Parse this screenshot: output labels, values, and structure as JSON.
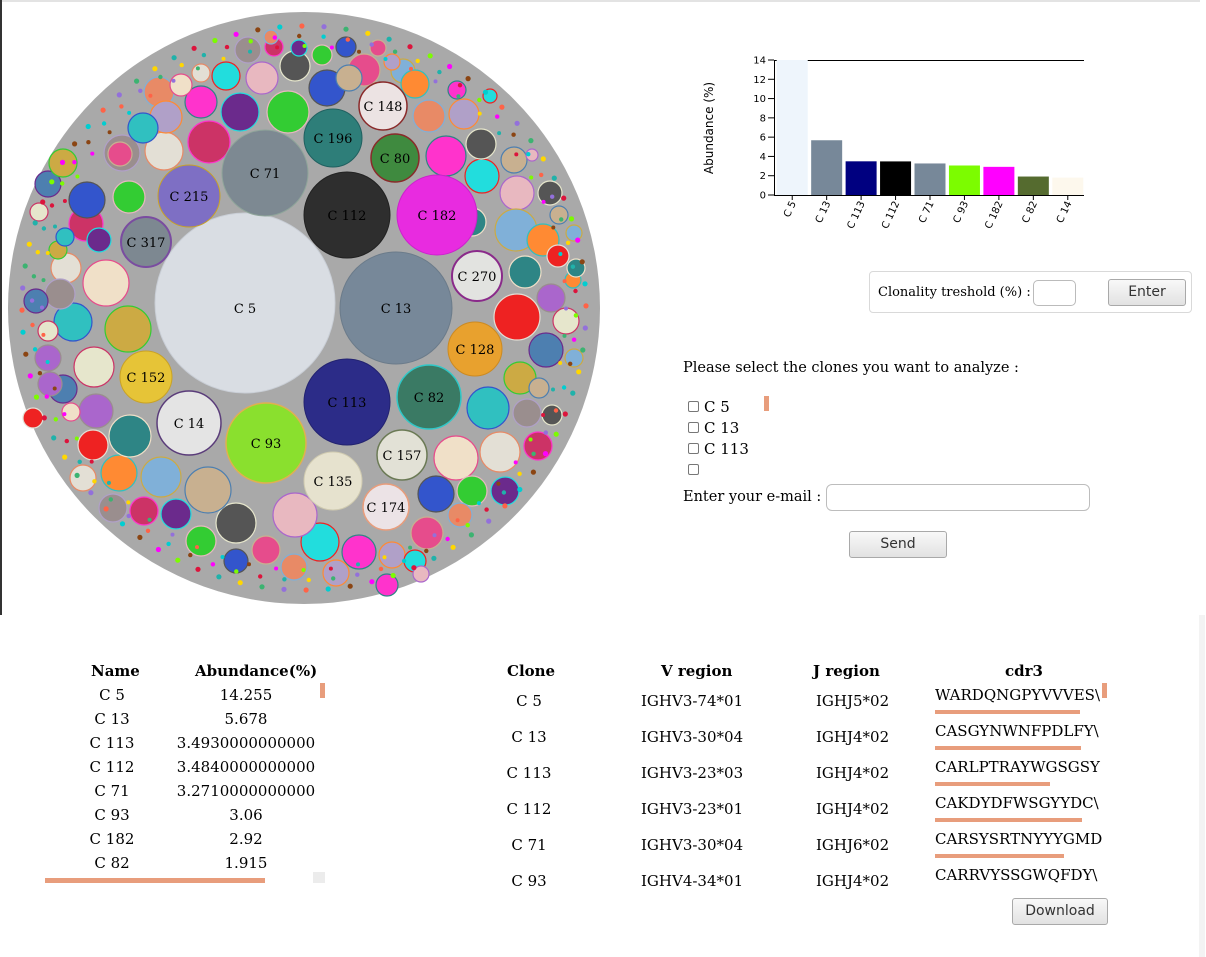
{
  "bubble_labels": [
    {
      "label": "C 5",
      "color": "#d9dde3"
    },
    {
      "label": "C 13",
      "color": "#778899"
    },
    {
      "label": "C 113",
      "color": "#2c2c88"
    },
    {
      "label": "C 112",
      "color": "#2e2e2e"
    },
    {
      "label": "C 71",
      "color": "#7d8992"
    },
    {
      "label": "C 93",
      "color": "#8ae02e"
    },
    {
      "label": "C 182",
      "color": "#e82be0"
    },
    {
      "label": "C 82",
      "color": "#3a7a64"
    },
    {
      "label": "C 14",
      "color": "#e4e4e4"
    },
    {
      "label": "C 135",
      "color": "#e6e2ce"
    },
    {
      "label": "C 152",
      "color": "#e6c437"
    },
    {
      "label": "C 128",
      "color": "#e8a12e"
    },
    {
      "label": "C 270",
      "color": "#e2e3e0"
    },
    {
      "label": "C 157",
      "color": "#e2e1d6"
    },
    {
      "label": "C 174",
      "color": "#ece3e6"
    },
    {
      "label": "C 215",
      "color": "#7e6fc4"
    },
    {
      "label": "C 317",
      "color": "#7d8891"
    },
    {
      "label": "C 196",
      "color": "#2e7e79"
    },
    {
      "label": "C 80",
      "color": "#3f8a3f"
    },
    {
      "label": "C 148",
      "color": "#ece3e3"
    }
  ],
  "chart_data": {
    "type": "bar",
    "ylabel": "Abundance (%)",
    "ylim": [
      0,
      14
    ],
    "yticks": [
      "0",
      "2",
      "4",
      "6",
      "8",
      "10",
      "12",
      "14"
    ],
    "categories": [
      "C 5",
      "C 13",
      "C 113",
      "C 112",
      "C 71",
      "C 93",
      "C 182",
      "C 82",
      "C 14"
    ],
    "values": [
      14.255,
      5.678,
      3.493,
      3.484,
      3.271,
      3.06,
      2.92,
      1.915,
      1.8
    ],
    "colors": [
      "#eef5fc",
      "#778899",
      "#000080",
      "#000000",
      "#778899",
      "#7cfc00",
      "#ff00ff",
      "#556b2f",
      "#fdf8ed"
    ]
  },
  "threshold": {
    "label": "Clonality treshold (%) :",
    "value": "",
    "button": "Enter"
  },
  "selection": {
    "title": "Please select the clones you want to analyze :",
    "clones": [
      "C 5",
      "C 13",
      "C 113"
    ]
  },
  "email": {
    "label": "Enter your e-mail :",
    "value": ""
  },
  "send_button": "Send",
  "abundance_table": {
    "headers": [
      "Name",
      "Abundance(%)"
    ],
    "rows": [
      [
        "C 5",
        "14.255"
      ],
      [
        "C 13",
        "5.678"
      ],
      [
        "C 113",
        "3.4930000000000"
      ],
      [
        "C 112",
        "3.4840000000000"
      ],
      [
        "C 71",
        "3.2710000000000"
      ],
      [
        "C 93",
        "3.06"
      ],
      [
        "C 182",
        "2.92"
      ],
      [
        "C 82",
        "1.915"
      ]
    ]
  },
  "clone_table": {
    "headers": [
      "Clone",
      "V region",
      "J region",
      "cdr3"
    ],
    "rows": [
      [
        "C 5",
        "IGHV3-74*01",
        "IGHJ5*02",
        "WARDQNGPYVVVES\\"
      ],
      [
        "C 13",
        "IGHV3-30*04",
        "IGHJ4*02",
        "CASGYNWNFPDLFY\\"
      ],
      [
        "C 113",
        "IGHV3-23*03",
        "IGHJ4*02",
        "CARLPTRAYWGSGSY"
      ],
      [
        "C 112",
        "IGHV3-23*01",
        "IGHJ4*02",
        "CAKDYDFWSGYYDC\\"
      ],
      [
        "C 71",
        "IGHV3-30*04",
        "IGHJ6*02",
        "CARSYSRTNYYYGMD"
      ],
      [
        "C 93",
        "IGHV4-34*01",
        "IGHJ4*02",
        "CARRVYSSGWQFDY\\"
      ]
    ]
  },
  "download_button": "Download"
}
